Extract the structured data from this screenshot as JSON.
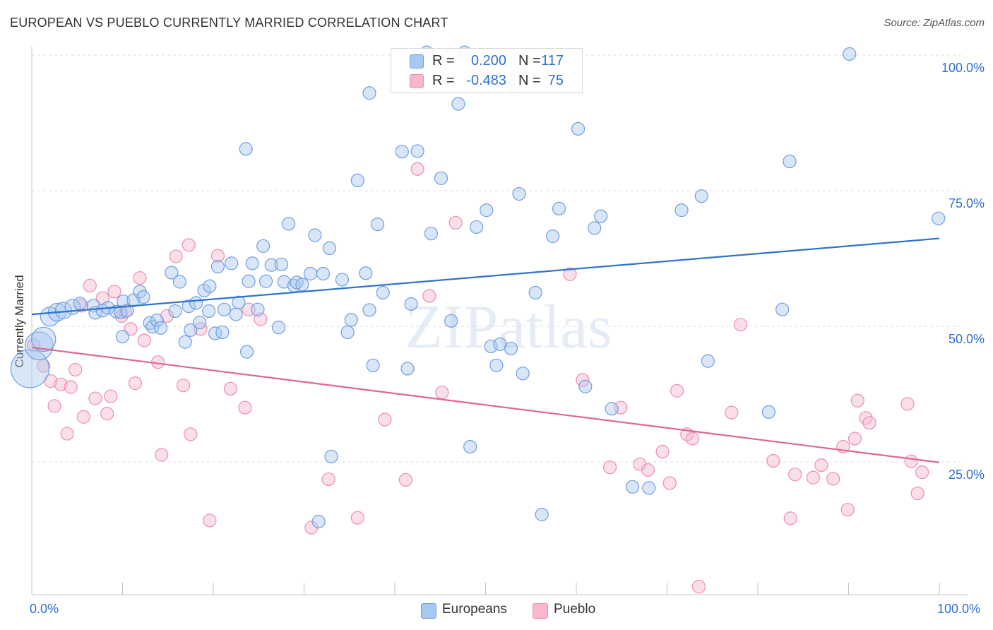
{
  "title": "EUROPEAN VS PUEBLO CURRENTLY MARRIED CORRELATION CHART",
  "source": "Source: ZipAtlas.com",
  "watermark": "ZIPatlas",
  "colors": {
    "european_fill": "#a9c8f0",
    "european_stroke": "#6f9fe0",
    "european_line": "#2f73d1",
    "pueblo_fill": "#f7b8cc",
    "pueblo_stroke": "#ec8fae",
    "pueblo_line": "#e0678f",
    "axis_text": "#2f6fd6"
  },
  "legend": {
    "european": {
      "r_label": "R =",
      "r_value": "0.200",
      "n_label": "N =",
      "n_value": "117"
    },
    "pueblo": {
      "r_label": "R =",
      "r_value": "-0.483",
      "n_label": "N =",
      "n_value": "75"
    }
  },
  "bottom_legend": {
    "european": "Europeans",
    "pueblo": "Pueblo"
  },
  "chart_data": {
    "type": "scatter",
    "title": "EUROPEAN VS PUEBLO CURRENTLY MARRIED CORRELATION CHART",
    "xlabel": "",
    "ylabel": "Currently Married",
    "xlim": [
      0,
      100
    ],
    "ylim": [
      0,
      104
    ],
    "x_tick_labels": {
      "left": "0.0%",
      "right": "100.0%"
    },
    "y_ticks": [
      {
        "value": 25,
        "label": "25.0%"
      },
      {
        "value": 50,
        "label": "50.0%"
      },
      {
        "value": 75,
        "label": "75.0%"
      },
      {
        "value": 100,
        "label": "100.0%"
      }
    ],
    "grid": true,
    "series": [
      {
        "name": "Europeans",
        "r": 0.2,
        "n": 117,
        "trend": {
          "x": [
            0,
            100
          ],
          "y": [
            52.2,
            66.2
          ]
        },
        "points": [
          [
            -0.2,
            42.2,
            3
          ],
          [
            0.8,
            46.4,
            2.2
          ],
          [
            1.3,
            47.6,
            1.9
          ],
          [
            2.0,
            51.8,
            1.5
          ],
          [
            2.8,
            52.6,
            1.4
          ],
          [
            3.5,
            52.9,
            1.3
          ],
          [
            4.5,
            53.6,
            1.2
          ],
          [
            5.3,
            54.2,
            1
          ],
          [
            6.8,
            53.8,
            1
          ],
          [
            7.0,
            52.5,
            1
          ],
          [
            7.8,
            52.9,
            1
          ],
          [
            8.4,
            53.4,
            1
          ],
          [
            9.3,
            52.7,
            1
          ],
          [
            10.1,
            54.6,
            1
          ],
          [
            9.8,
            52.6,
            1
          ],
          [
            11.2,
            54.8,
            1
          ],
          [
            10.5,
            52.9,
            1
          ],
          [
            10.0,
            48.1,
            1
          ],
          [
            11.9,
            56.4,
            1
          ],
          [
            12.3,
            55.4,
            1
          ],
          [
            13.0,
            50.6,
            1
          ],
          [
            13.3,
            49.9,
            1
          ],
          [
            13.8,
            51.1,
            1
          ],
          [
            14.2,
            49.7,
            1
          ],
          [
            15.4,
            59.9,
            1
          ],
          [
            15.8,
            52.8,
            1
          ],
          [
            16.3,
            58.2,
            1
          ],
          [
            16.9,
            47.1,
            1
          ],
          [
            17.3,
            53.7,
            1
          ],
          [
            18.1,
            54.3,
            1
          ],
          [
            17.5,
            49.3,
            1
          ],
          [
            18.5,
            50.7,
            1
          ],
          [
            19.0,
            56.6,
            1
          ],
          [
            19.6,
            57.4,
            1
          ],
          [
            19.5,
            52.8,
            1
          ],
          [
            20.2,
            48.7,
            1
          ],
          [
            20.5,
            61.0,
            1
          ],
          [
            21.2,
            53.1,
            1
          ],
          [
            21.0,
            48.9,
            1
          ],
          [
            22.0,
            61.6,
            1
          ],
          [
            22.5,
            52.2,
            1
          ],
          [
            22.8,
            54.4,
            1
          ],
          [
            23.7,
            45.3,
            1
          ],
          [
            24.3,
            61.6,
            1
          ],
          [
            23.9,
            58.3,
            1
          ],
          [
            24.9,
            53.1,
            1
          ],
          [
            25.5,
            64.8,
            1
          ],
          [
            25.8,
            58.3,
            1
          ],
          [
            26.4,
            61.3,
            1
          ],
          [
            27.2,
            49.8,
            1
          ],
          [
            27.5,
            61.4,
            1
          ],
          [
            27.8,
            58.2,
            1
          ],
          [
            28.3,
            68.9,
            1
          ],
          [
            28.9,
            57.5,
            1
          ],
          [
            29.2,
            58.1,
            1
          ],
          [
            29.8,
            57.7,
            1
          ],
          [
            30.7,
            59.7,
            1
          ],
          [
            31.2,
            66.8,
            1
          ],
          [
            32.1,
            59.7,
            1
          ],
          [
            32.8,
            64.4,
            1
          ],
          [
            33.0,
            26.0,
            1
          ],
          [
            34.2,
            58.6,
            1
          ],
          [
            34.8,
            48.9,
            1
          ],
          [
            35.2,
            51.2,
            1
          ],
          [
            35.9,
            76.9,
            1
          ],
          [
            36.8,
            59.8,
            1
          ],
          [
            37.2,
            53.0,
            1
          ],
          [
            37.6,
            42.8,
            1
          ],
          [
            38.1,
            68.8,
            1
          ],
          [
            38.7,
            56.2,
            1
          ],
          [
            23.6,
            82.7,
            1
          ],
          [
            31.6,
            14.0,
            1
          ],
          [
            37.2,
            93.0,
            1
          ],
          [
            40.8,
            82.2,
            1
          ],
          [
            41.4,
            42.2,
            1
          ],
          [
            41.8,
            54.1,
            1
          ],
          [
            42.5,
            82.3,
            1
          ],
          [
            43.5,
            100.5,
            1
          ],
          [
            44.0,
            67.1,
            1
          ],
          [
            45.1,
            77.3,
            1
          ],
          [
            46.2,
            51.0,
            1
          ],
          [
            47.0,
            91.0,
            1
          ],
          [
            47.7,
            100.5,
            1
          ],
          [
            48.3,
            27.8,
            1
          ],
          [
            49.0,
            68.3,
            1
          ],
          [
            50.1,
            71.4,
            1
          ],
          [
            50.6,
            46.3,
            1
          ],
          [
            51.2,
            42.8,
            1
          ],
          [
            51.6,
            46.7,
            1
          ],
          [
            52.8,
            45.9,
            1
          ],
          [
            53.2,
            94.3,
            1
          ],
          [
            53.7,
            74.4,
            1
          ],
          [
            54.1,
            41.3,
            1
          ],
          [
            55.5,
            56.2,
            1
          ],
          [
            56.2,
            15.3,
            1
          ],
          [
            57.4,
            66.6,
            1
          ],
          [
            58.1,
            71.7,
            1
          ],
          [
            60.2,
            86.4,
            1
          ],
          [
            61.0,
            38.9,
            1
          ],
          [
            62.0,
            68.1,
            1
          ],
          [
            62.7,
            70.3,
            1
          ],
          [
            63.9,
            34.8,
            1
          ],
          [
            66.2,
            20.4,
            1
          ],
          [
            68.0,
            20.2,
            1
          ],
          [
            71.6,
            71.4,
            1
          ],
          [
            73.8,
            74.0,
            1
          ],
          [
            74.5,
            43.6,
            1
          ],
          [
            81.2,
            34.2,
            1
          ],
          [
            82.7,
            53.1,
            1
          ],
          [
            83.5,
            80.4,
            1
          ],
          [
            90.1,
            100.2,
            1
          ],
          [
            99.9,
            69.9,
            1
          ]
        ]
      },
      {
        "name": "Pueblo",
        "r": -0.483,
        "n": 75,
        "trend": {
          "x": [
            0,
            100
          ],
          "y": [
            46.1,
            24.9
          ]
        },
        "points": [
          [
            0.2,
            46.5,
            1
          ],
          [
            1.3,
            42.7,
            1
          ],
          [
            2.1,
            39.9,
            1
          ],
          [
            2.5,
            35.3,
            1
          ],
          [
            3.2,
            39.3,
            1
          ],
          [
            3.9,
            30.2,
            1
          ],
          [
            4.3,
            38.8,
            1
          ],
          [
            4.8,
            42.0,
            1
          ],
          [
            5.5,
            53.8,
            1
          ],
          [
            5.7,
            33.3,
            1
          ],
          [
            6.4,
            57.5,
            1
          ],
          [
            7.0,
            36.7,
            1
          ],
          [
            7.8,
            55.2,
            1
          ],
          [
            8.3,
            33.9,
            1
          ],
          [
            8.7,
            37.1,
            1
          ],
          [
            9.1,
            56.4,
            1
          ],
          [
            9.9,
            51.9,
            1
          ],
          [
            10.3,
            52.7,
            1
          ],
          [
            10.9,
            49.5,
            1
          ],
          [
            11.4,
            39.5,
            1
          ],
          [
            11.9,
            58.9,
            1
          ],
          [
            12.4,
            47.4,
            1
          ],
          [
            13.9,
            43.4,
            1
          ],
          [
            14.3,
            26.3,
            1
          ],
          [
            14.9,
            51.9,
            1
          ],
          [
            15.9,
            62.9,
            1
          ],
          [
            16.7,
            39.1,
            1
          ],
          [
            17.3,
            65.0,
            1
          ],
          [
            17.5,
            30.1,
            1
          ],
          [
            18.6,
            49.5,
            1
          ],
          [
            19.6,
            14.2,
            1
          ],
          [
            20.5,
            63.0,
            1
          ],
          [
            21.9,
            38.5,
            1
          ],
          [
            23.5,
            35.0,
            1
          ],
          [
            23.9,
            53.1,
            1
          ],
          [
            25.2,
            51.3,
            1
          ],
          [
            30.8,
            12.9,
            1
          ],
          [
            32.7,
            21.8,
            1
          ],
          [
            35.9,
            14.7,
            1
          ],
          [
            38.9,
            32.8,
            1
          ],
          [
            41.2,
            21.7,
            1
          ],
          [
            42.5,
            79.0,
            1
          ],
          [
            43.8,
            55.6,
            1
          ],
          [
            45.2,
            37.8,
            1
          ],
          [
            46.7,
            69.1,
            1
          ],
          [
            59.3,
            59.6,
            1
          ],
          [
            60.7,
            40.1,
            1
          ],
          [
            63.7,
            24.0,
            1
          ],
          [
            64.9,
            35.0,
            1
          ],
          [
            67.0,
            24.6,
            1
          ],
          [
            67.9,
            23.5,
            1
          ],
          [
            69.5,
            26.9,
            1
          ],
          [
            70.3,
            21.1,
            1
          ],
          [
            71.1,
            38.1,
            1
          ],
          [
            72.2,
            30.1,
            1
          ],
          [
            72.8,
            29.3,
            1
          ],
          [
            73.5,
            2.0,
            1
          ],
          [
            77.1,
            34.1,
            1
          ],
          [
            78.1,
            50.3,
            1
          ],
          [
            81.7,
            25.2,
            1
          ],
          [
            83.6,
            14.6,
            1
          ],
          [
            84.1,
            22.7,
            1
          ],
          [
            86.1,
            22.1,
            1
          ],
          [
            87.0,
            24.4,
            1
          ],
          [
            88.3,
            21.9,
            1
          ],
          [
            89.4,
            27.8,
            1
          ],
          [
            89.9,
            16.2,
            1
          ],
          [
            90.7,
            29.3,
            1
          ],
          [
            91.0,
            36.3,
            1
          ],
          [
            91.9,
            33.1,
            1
          ],
          [
            92.3,
            32.2,
            1
          ],
          [
            96.5,
            35.7,
            1
          ],
          [
            96.9,
            25.1,
            1
          ],
          [
            97.6,
            19.2,
            1
          ],
          [
            98.1,
            23.1,
            1
          ]
        ]
      }
    ]
  }
}
